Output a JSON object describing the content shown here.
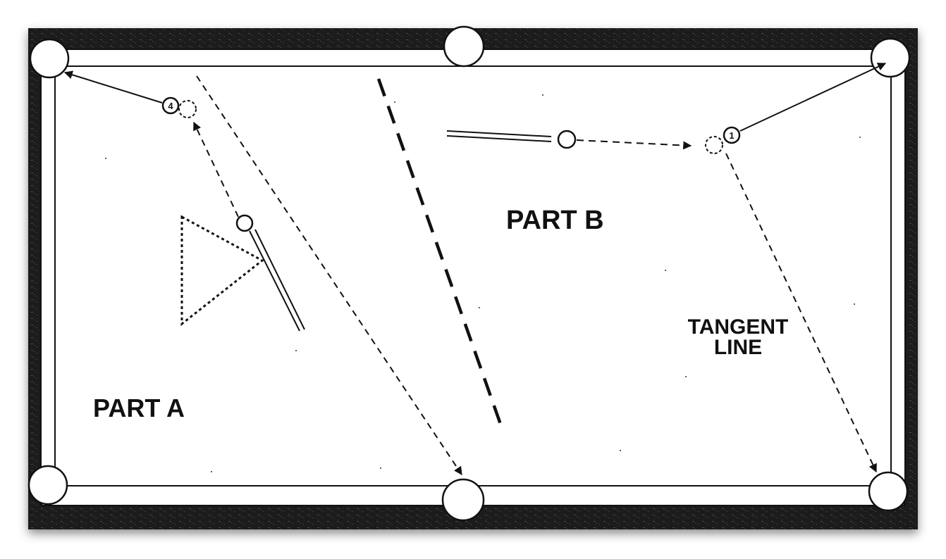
{
  "diagram": {
    "labels": {
      "part_a": "PART A",
      "part_b": "PART B",
      "tangent_line_1": "TANGENT",
      "tangent_line_2": "LINE"
    },
    "balls": {
      "object_ball_left": "4",
      "object_ball_right": "1"
    },
    "colors": {
      "rail": "#1c1c1c",
      "cloth": "#ffffff",
      "ink": "#111111"
    }
  }
}
